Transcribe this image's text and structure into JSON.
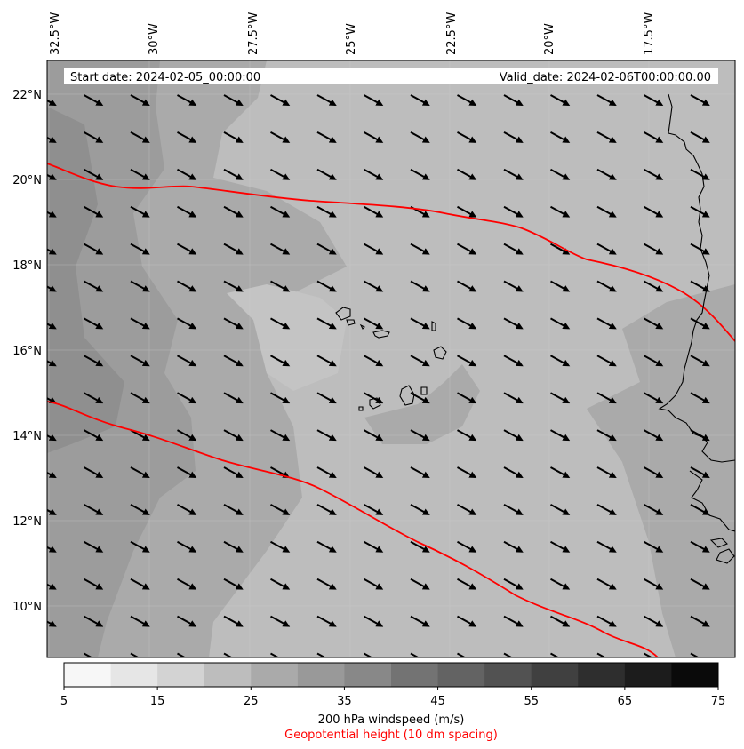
{
  "header": {
    "start_date": "Start date: 2024-02-05_00:00:00",
    "valid_date": "Valid_date: 2024-02-06T00:00:00.00"
  },
  "axes": {
    "lon_labels": [
      "32.5°W",
      "30°W",
      "27.5°W",
      "25°W",
      "22.5°W",
      "20°W",
      "17.5°W"
    ],
    "lat_labels": [
      "22°N",
      "20°N",
      "18°N",
      "16°N",
      "14°N",
      "12°N",
      "10°N"
    ]
  },
  "colorbar": {
    "ticks": [
      "5",
      "15",
      "25",
      "35",
      "45",
      "55",
      "65",
      "75"
    ],
    "shades": [
      "#f7f7f7",
      "#e6e6e6",
      "#d3d3d3",
      "#bdbdbd",
      "#aaaaaa",
      "#999999",
      "#888888",
      "#737373",
      "#636363",
      "#525252",
      "#404040",
      "#2e2e2e",
      "#1c1c1c",
      "#0a0a0a"
    ],
    "label": "200 hPa windspeed (m/s)",
    "sublabel": "Geopotential height (10 dm spacing)",
    "sublabel_color": "#ff0000"
  },
  "colors": {
    "contour": "#ff0000",
    "field_base": "#bdbdbd",
    "field_mid": "#aaaaaa",
    "field_dark": "#999999",
    "field_darker": "#8e8e8e",
    "coast": "#000000"
  }
}
